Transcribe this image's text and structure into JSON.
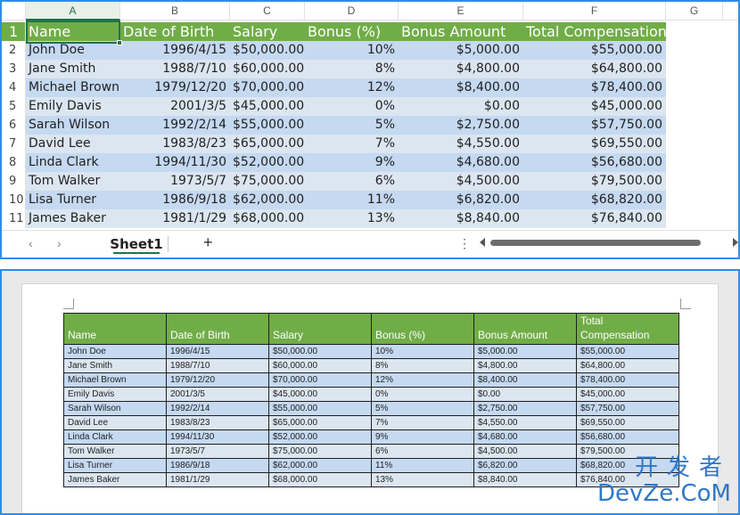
{
  "excel": {
    "columns": [
      "A",
      "B",
      "C",
      "D",
      "E",
      "F",
      "G"
    ],
    "active_column": "A",
    "headers": [
      "Name",
      "Date of Birth",
      "Salary",
      "Bonus (%)",
      "Bonus Amount",
      "Total Compensation"
    ],
    "rows": [
      [
        "John Doe",
        "1996/4/15",
        "$50,000.00",
        "10%",
        "$5,000.00",
        "$55,000.00"
      ],
      [
        "Jane Smith",
        "1988/7/10",
        "$60,000.00",
        "8%",
        "$4,800.00",
        "$64,800.00"
      ],
      [
        "Michael Brown",
        "1979/12/20",
        "$70,000.00",
        "12%",
        "$8,400.00",
        "$78,400.00"
      ],
      [
        "Emily Davis",
        "2001/3/5",
        "$45,000.00",
        "0%",
        "$0.00",
        "$45,000.00"
      ],
      [
        "Sarah Wilson",
        "1992/2/14",
        "$55,000.00",
        "5%",
        "$2,750.00",
        "$57,750.00"
      ],
      [
        "David Lee",
        "1983/8/23",
        "$65,000.00",
        "7%",
        "$4,550.00",
        "$69,550.00"
      ],
      [
        "Linda Clark",
        "1994/11/30",
        "$52,000.00",
        "9%",
        "$4,680.00",
        "$56,680.00"
      ],
      [
        "Tom Walker",
        "1973/5/7",
        "$75,000.00",
        "6%",
        "$4,500.00",
        "$79,500.00"
      ],
      [
        "Lisa Turner",
        "1986/9/18",
        "$62,000.00",
        "11%",
        "$6,820.00",
        "$68,820.00"
      ],
      [
        "James Baker",
        "1981/1/29",
        "$68,000.00",
        "13%",
        "$8,840.00",
        "$76,840.00"
      ]
    ],
    "row_numbers": [
      "1",
      "2",
      "3",
      "4",
      "5",
      "6",
      "7",
      "8",
      "9",
      "10",
      "11"
    ],
    "sheet_tab": "Sheet1",
    "add_sheet": "+",
    "nav_prev": "‹",
    "nav_next": "›",
    "more": "⋮"
  },
  "word": {
    "headers": [
      "Name",
      "Date of Birth",
      "Salary",
      "Bonus (%)",
      "Bonus Amount",
      "Total Compensation"
    ],
    "rows": [
      [
        "John Doe",
        "1996/4/15",
        "$50,000.00",
        "10%",
        "$5,000.00",
        "$55,000.00"
      ],
      [
        "Jane Smith",
        "1988/7/10",
        "$60,000.00",
        "8%",
        "$4,800.00",
        "$64,800.00"
      ],
      [
        "Michael Brown",
        "1979/12/20",
        "$70,000.00",
        "12%",
        "$8,400.00",
        "$78,400.00"
      ],
      [
        "Emily Davis",
        "2001/3/5",
        "$45,000.00",
        "0%",
        "$0.00",
        "$45,000.00"
      ],
      [
        "Sarah Wilson",
        "1992/2/14",
        "$55,000.00",
        "5%",
        "$2,750.00",
        "$57,750.00"
      ],
      [
        "David Lee",
        "1983/8/23",
        "$65,000.00",
        "7%",
        "$4,550.00",
        "$69,550.00"
      ],
      [
        "Linda Clark",
        "1994/11/30",
        "$52,000.00",
        "9%",
        "$4,680.00",
        "$56,680.00"
      ],
      [
        "Tom Walker",
        "1973/5/7",
        "$75,000.00",
        "6%",
        "$4,500.00",
        "$79,500.00"
      ],
      [
        "Lisa Turner",
        "1986/9/18",
        "$62,000.00",
        "11%",
        "$6,820.00",
        "$68,820.00"
      ],
      [
        "James Baker",
        "1981/1/29",
        "$68,000.00",
        "13%",
        "$8,840.00",
        "$76,840.00"
      ]
    ]
  },
  "watermark": {
    "top": "开发者",
    "bottom": "DevZe.CoM"
  },
  "colors": {
    "header_green": "#70ad47",
    "band_dark": "#c5d9f1",
    "band_light": "#dce6f1",
    "panel_border": "#2f8ce6",
    "watermark": "#2f77c8"
  }
}
